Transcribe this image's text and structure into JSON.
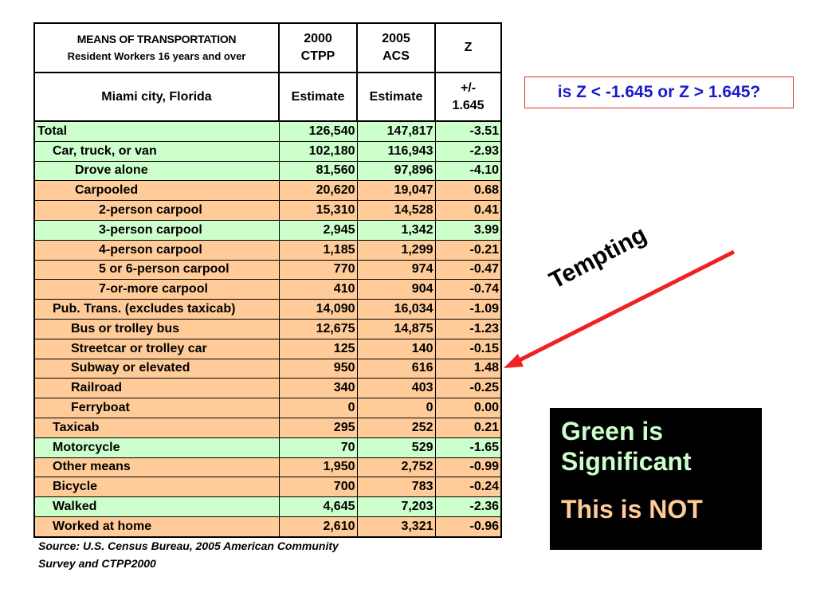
{
  "header": {
    "title": "MEANS OF TRANSPORTATION",
    "subtitle": "Resident Workers 16 years and over",
    "col2_line1": "2000",
    "col2_line2": "CTPP",
    "col3_line1": "2005",
    "col3_line2": "ACS",
    "col4": "Z",
    "geo": "Miami city, Florida",
    "est1": "Estimate",
    "est2": "Estimate",
    "z_line1": "+/-",
    "z_line2": "1.645"
  },
  "rows": [
    {
      "label": "Total",
      "ctpp": "126,540",
      "acs": "147,817",
      "z": "-3.51",
      "significant": true
    },
    {
      "label": "Car, truck, or van",
      "ctpp": "102,180",
      "acs": "116,943",
      "z": "-2.93",
      "significant": true
    },
    {
      "label": "Drove alone",
      "ctpp": "81,560",
      "acs": "97,896",
      "z": "-4.10",
      "significant": true
    },
    {
      "label": "Carpooled",
      "ctpp": "20,620",
      "acs": "19,047",
      "z": "0.68",
      "significant": false
    },
    {
      "label": "2-person carpool",
      "ctpp": "15,310",
      "acs": "14,528",
      "z": "0.41",
      "significant": false
    },
    {
      "label": "3-person carpool",
      "ctpp": "2,945",
      "acs": "1,342",
      "z": "3.99",
      "significant": true
    },
    {
      "label": "4-person carpool",
      "ctpp": "1,185",
      "acs": "1,299",
      "z": "-0.21",
      "significant": false
    },
    {
      "label": "5 or 6-person carpool",
      "ctpp": "770",
      "acs": "974",
      "z": "-0.47",
      "significant": false
    },
    {
      "label": "7-or-more carpool",
      "ctpp": "410",
      "acs": "904",
      "z": "-0.74",
      "significant": false
    },
    {
      "label": "Pub. Trans. (excludes taxicab)",
      "ctpp": "14,090",
      "acs": "16,034",
      "z": "-1.09",
      "significant": false
    },
    {
      "label": "Bus or trolley bus",
      "ctpp": "12,675",
      "acs": "14,875",
      "z": "-1.23",
      "significant": false
    },
    {
      "label": "Streetcar or trolley car",
      "ctpp": "125",
      "acs": "140",
      "z": "-0.15",
      "significant": false
    },
    {
      "label": "Subway or elevated",
      "ctpp": "950",
      "acs": "616",
      "z": "1.48",
      "significant": false
    },
    {
      "label": "Railroad",
      "ctpp": "340",
      "acs": "403",
      "z": "-0.25",
      "significant": false
    },
    {
      "label": "Ferryboat",
      "ctpp": "0",
      "acs": "0",
      "z": "0.00",
      "significant": false
    },
    {
      "label": "Taxicab",
      "ctpp": "295",
      "acs": "252",
      "z": "0.21",
      "significant": false
    },
    {
      "label": "Motorcycle",
      "ctpp": "70",
      "acs": "529",
      "z": "-1.65",
      "significant": true
    },
    {
      "label": "Other means",
      "ctpp": "1,950",
      "acs": "2,752",
      "z": "-0.99",
      "significant": false
    },
    {
      "label": "Bicycle",
      "ctpp": "700",
      "acs": "783",
      "z": "-0.24",
      "significant": false
    },
    {
      "label": "Walked",
      "ctpp": "4,645",
      "acs": "7,203",
      "z": "-2.36",
      "significant": true
    },
    {
      "label": "Worked at home",
      "ctpp": "2,610",
      "acs": "3,321",
      "z": "-0.96",
      "significant": false
    }
  ],
  "source_line1": "Source: U.S. Census Bureau, 2005 American Community",
  "source_line2": "Survey and CTPP2000",
  "question": "is Z < -1.645 or Z > 1.645?",
  "tempting_label": "Tempting",
  "legend": {
    "line1": "Green is",
    "line2": "Significant",
    "line3": "This is NOT"
  },
  "colors": {
    "significant": "#ccffcc",
    "not_significant": "#ffcc99",
    "arrow": "#ee2222",
    "question_text": "#1a1acc",
    "question_border": "#e03030"
  }
}
